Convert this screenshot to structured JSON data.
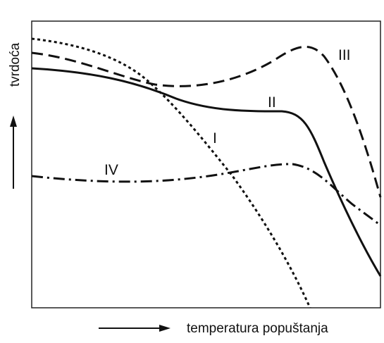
{
  "axes": {
    "y_label": "tvrdoća",
    "x_label": "temperatura popuštanja"
  },
  "curves": [
    {
      "label": "I"
    },
    {
      "label": "II"
    },
    {
      "label": "III"
    },
    {
      "label": "IV"
    }
  ]
}
